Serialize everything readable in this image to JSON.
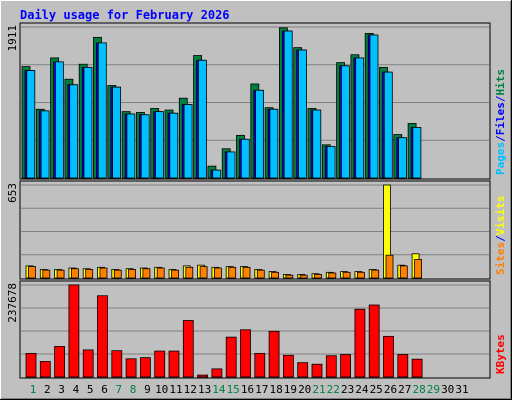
{
  "chart_data": {
    "type": "bar",
    "title": "Daily usage for February 2026",
    "categories": [
      "1",
      "2",
      "3",
      "4",
      "5",
      "6",
      "7",
      "8",
      "9",
      "10",
      "11",
      "12",
      "13",
      "14",
      "15",
      "16",
      "17",
      "18",
      "19",
      "20",
      "21",
      "22",
      "23",
      "24",
      "25",
      "26",
      "27",
      "28",
      "29",
      "30",
      "31"
    ],
    "weekend_days": [
      "1",
      "7",
      "8",
      "14",
      "15",
      "21",
      "22",
      "28",
      "29"
    ],
    "panels": [
      {
        "id": "pages-files-hits",
        "ymax_label": "1911",
        "ymax": 1911,
        "legend": [
          {
            "text": "Pages",
            "color": "#00c0ff"
          },
          {
            "text": "/",
            "color": "#0000ff"
          },
          {
            "text": "Files",
            "color": "#0000ff"
          },
          {
            "text": "/",
            "color": "#0000ff"
          },
          {
            "text": "Hits",
            "color": "#008040"
          }
        ],
        "series": [
          {
            "name": "Hits",
            "color": "#008040",
            "values": [
              1410,
              870,
              1520,
              1250,
              1440,
              1780,
              1170,
              840,
              830,
              880,
              860,
              1010,
              1550,
              150,
              370,
              540,
              1190,
              890,
              1900,
              1650,
              880,
              420,
              1460,
              1560,
              1830,
              1400,
              550,
              690,
              0,
              0,
              0
            ]
          },
          {
            "name": "Files",
            "color": "#0000ff",
            "values": [
              1360,
              850,
              1470,
              1180,
              1400,
              1710,
              1150,
              810,
              800,
              840,
              820,
              930,
              1490,
              100,
              330,
              490,
              1110,
              870,
              1860,
              1620,
              860,
              400,
              1420,
              1520,
              1810,
              1340,
              510,
              640,
              0,
              0,
              0
            ]
          },
          {
            "name": "Pages",
            "color": "#00c0ff",
            "values": [
              1360,
              850,
              1470,
              1180,
              1400,
              1710,
              1150,
              810,
              800,
              840,
              820,
              930,
              1490,
              100,
              330,
              490,
              1110,
              870,
              1860,
              1620,
              860,
              400,
              1420,
              1520,
              1810,
              1340,
              510,
              640,
              0,
              0,
              0
            ]
          }
        ]
      },
      {
        "id": "sites-visits",
        "ymax_label": "653",
        "ymax": 653,
        "legend": [
          {
            "text": "Sites",
            "color": "#ff8000"
          },
          {
            "text": "/",
            "color": "#0000ff"
          },
          {
            "text": "Visits",
            "color": "#ffff00"
          }
        ],
        "series": [
          {
            "name": "Visits",
            "color": "#ffff00",
            "values": [
              85,
              60,
              60,
              70,
              65,
              75,
              60,
              65,
              70,
              75,
              60,
              85,
              90,
              75,
              80,
              80,
              60,
              45,
              25,
              25,
              30,
              40,
              45,
              45,
              60,
              653,
              90,
              170,
              0,
              0,
              0
            ]
          },
          {
            "name": "Sites",
            "color": "#ff8000",
            "values": [
              80,
              55,
              55,
              65,
              60,
              70,
              55,
              60,
              65,
              70,
              55,
              75,
              80,
              70,
              75,
              75,
              55,
              40,
              20,
              20,
              25,
              35,
              40,
              40,
              55,
              160,
              85,
              130,
              0,
              0,
              0
            ]
          }
        ]
      },
      {
        "id": "kbytes",
        "ymax_label": "237678",
        "ymax": 237678,
        "legend": [
          {
            "text": "KBytes",
            "color": "#ff0000"
          }
        ],
        "series": [
          {
            "name": "KBytes",
            "color": "#ff0000",
            "values": [
              61000,
              40000,
              79000,
              238000,
              70000,
              210000,
              68000,
              47000,
              50000,
              67000,
              67000,
              146000,
              5000,
              21000,
              103000,
              122000,
              61000,
              118000,
              56000,
              37000,
              33000,
              55000,
              58000,
              175000,
              186000,
              105000,
              58000,
              46000,
              0,
              0,
              0
            ]
          }
        ]
      }
    ]
  },
  "colors": {
    "background": "#c0c0c0",
    "frame": "#000000",
    "gridline": "#808080",
    "title": "#0000ff",
    "weekday_label": "#000000",
    "weekend_label": "#008040"
  }
}
